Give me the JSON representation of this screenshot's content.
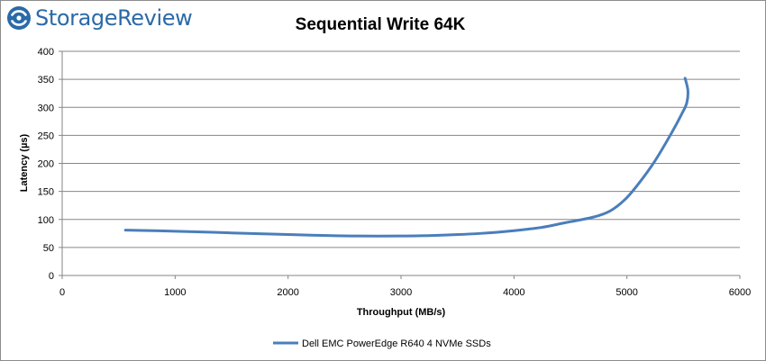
{
  "brand": {
    "name": "StorageReview",
    "color": "#2a6aa8"
  },
  "chart_data": {
    "type": "line",
    "title": "Sequential Write 64K",
    "xlabel": "Throughput (MB/s)",
    "ylabel": "Latency (µs)",
    "xlim": [
      0,
      6000
    ],
    "ylim": [
      0,
      400
    ],
    "x_ticks": [
      "0",
      "1000",
      "2000",
      "3000",
      "4000",
      "5000",
      "6000"
    ],
    "y_ticks": [
      "0",
      "50",
      "100",
      "150",
      "200",
      "250",
      "300",
      "350",
      "400"
    ],
    "grid": "horizontal",
    "legend_position": "bottom",
    "series": [
      {
        "name": "Dell EMC PowerEdge R640 4 NVMe SSDs",
        "color": "#4a7ebb",
        "points": [
          [
            560,
            81
          ],
          [
            1000,
            79
          ],
          [
            1500,
            76
          ],
          [
            2000,
            73
          ],
          [
            2300,
            71.5
          ],
          [
            2600,
            70.5
          ],
          [
            3000,
            70.5
          ],
          [
            3300,
            71.5
          ],
          [
            3700,
            75
          ],
          [
            4000,
            80
          ],
          [
            4250,
            86
          ],
          [
            4450,
            94
          ],
          [
            4700,
            104
          ],
          [
            4850,
            115
          ],
          [
            4980,
            135
          ],
          [
            5100,
            163
          ],
          [
            5250,
            205
          ],
          [
            5400,
            256
          ],
          [
            5490,
            290
          ],
          [
            5530,
            308
          ],
          [
            5540,
            330
          ],
          [
            5515,
            352
          ]
        ]
      }
    ]
  }
}
